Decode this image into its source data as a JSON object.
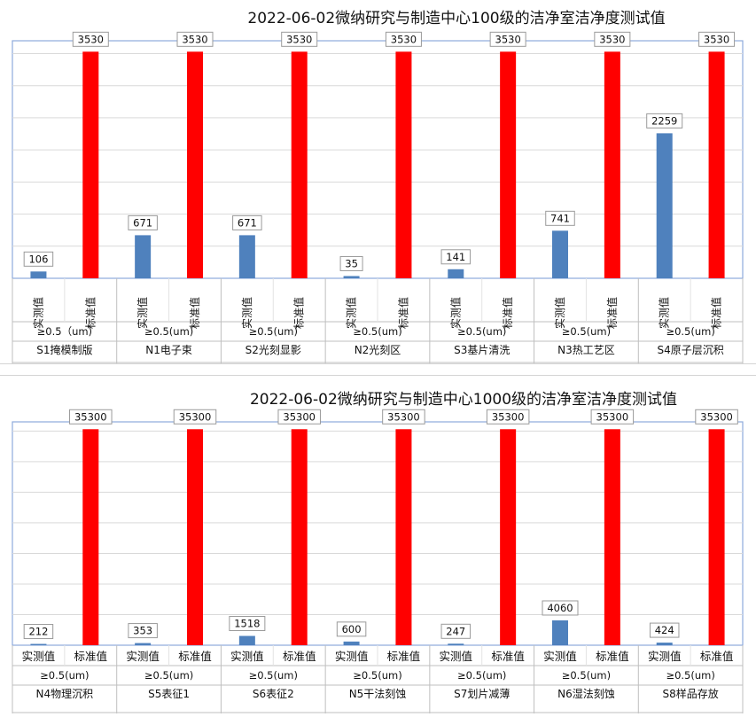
{
  "charts": [
    {
      "title": "2022-06-02微纳研究与制造中心100级的洁净室洁净度测试值",
      "ylim": [
        0,
        3700
      ],
      "grid_step": 500,
      "measured_color": "#4f81bd",
      "standard_color": "#ff0000",
      "measured_label": "实测值",
      "standard_label": "标准值",
      "groups": [
        {
          "name": "S1掩模制版",
          "size": "≥0.5（um)",
          "measured": 106,
          "standard": 3530
        },
        {
          "name": "N1电子束",
          "size": "≥0.5(um)",
          "measured": 671,
          "standard": 3530
        },
        {
          "name": "S2光刻显影",
          "size": "≥0.5(um)",
          "measured": 671,
          "standard": 3530
        },
        {
          "name": "N2光刻区",
          "size": "≥0.5(um)",
          "measured": 35,
          "standard": 3530
        },
        {
          "name": "S3基片清洗",
          "size": "≥0.5(um)",
          "measured": 141,
          "standard": 3530
        },
        {
          "name": "N3热工艺区",
          "size": "≥0.5(um)",
          "measured": 741,
          "standard": 3530
        },
        {
          "name": "S4原子层沉积",
          "size": "≥0.5(um)",
          "measured": 2259,
          "standard": 3530
        }
      ]
    },
    {
      "title": "2022-06-02微纳研究与制造中心1000级的洁净室洁净度测试值",
      "ylim": [
        0,
        36500
      ],
      "grid_step": 5000,
      "measured_color": "#4f81bd",
      "standard_color": "#ff0000",
      "measured_label": "实测值",
      "standard_label": "标准值",
      "groups": [
        {
          "name": "N4物理沉积",
          "size": "≥0.5(um)",
          "measured": 212,
          "standard": 35300
        },
        {
          "name": "S5表征1",
          "size": "≥0.5(um)",
          "measured": 353,
          "standard": 35300
        },
        {
          "name": "S6表征2",
          "size": "≥0.5(um)",
          "measured": 1518,
          "standard": 35300
        },
        {
          "name": "N5干法刻蚀",
          "size": "≥0.5(um)",
          "measured": 600,
          "standard": 35300
        },
        {
          "name": "S7划片减薄",
          "size": "≥0.5(um)",
          "measured": 247,
          "standard": 35300
        },
        {
          "name": "N6湿法刻蚀",
          "size": "≥0.5(um)",
          "measured": 4060,
          "standard": 35300
        },
        {
          "name": "S8样品存放",
          "size": "≥0.5(um)",
          "measured": 424,
          "standard": 35300
        }
      ]
    }
  ],
  "chart_data": [
    {
      "type": "bar",
      "title": "2022-06-02微纳研究与制造中心100级的洁净室洁净度测试值",
      "categories": [
        "S1掩模制版",
        "N1电子束",
        "S2光刻显影",
        "N2光刻区",
        "S3基片清洗",
        "N3热工艺区",
        "S4原子层沉积"
      ],
      "series": [
        {
          "name": "实测值",
          "values": [
            106,
            671,
            671,
            35,
            141,
            741,
            2259
          ]
        },
        {
          "name": "标准值",
          "values": [
            3530,
            3530,
            3530,
            3530,
            3530,
            3530,
            3530
          ]
        }
      ],
      "xlabel": "",
      "ylabel": "",
      "ylim": [
        0,
        3700
      ],
      "grid": true
    },
    {
      "type": "bar",
      "title": "2022-06-02微纳研究与制造中心1000级的洁净室洁净度测试值",
      "categories": [
        "N4物理沉积",
        "S5表征1",
        "S6表征2",
        "N5干法刻蚀",
        "S7划片减薄",
        "N6湿法刻蚀",
        "S8样品存放"
      ],
      "series": [
        {
          "name": "实测值",
          "values": [
            212,
            353,
            1518,
            600,
            247,
            4060,
            424
          ]
        },
        {
          "name": "标准值",
          "values": [
            35300,
            35300,
            35300,
            35300,
            35300,
            35300,
            35300
          ]
        }
      ],
      "xlabel": "",
      "ylabel": "",
      "ylim": [
        0,
        36500
      ],
      "grid": true
    }
  ]
}
